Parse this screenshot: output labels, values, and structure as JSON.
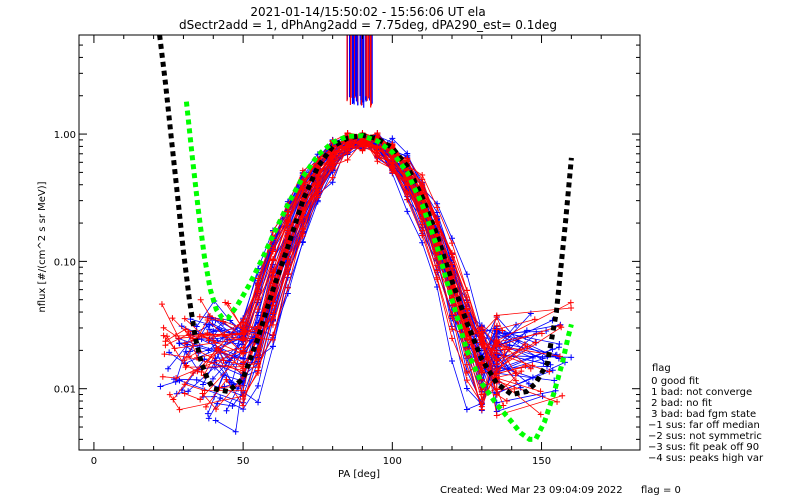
{
  "chart_data": {
    "type": "scatter",
    "title": "2021-01-14/15:50:02 - 15:56:06 UT ela",
    "subtitle": "dSectr2add = 1, dPhAng2add = 7.75deg, dPA290_est=   0.1deg",
    "xlabel": "PA [deg]",
    "ylabel": "nflux [#/(cm^2 s sr MeV)]",
    "xlim": [
      -5,
      183
    ],
    "ylim": [
      0.0033,
      6.0
    ],
    "y_scale": "log",
    "x_ticks": [
      {
        "value": 0,
        "label": "0"
      },
      {
        "value": 50,
        "label": "50"
      },
      {
        "value": 100,
        "label": "100"
      },
      {
        "value": 150,
        "label": "150"
      }
    ],
    "y_ticks": [
      {
        "value": 0.01,
        "label": "0.01"
      },
      {
        "value": 0.1,
        "label": "0.10"
      },
      {
        "value": 1.0,
        "label": "1.00"
      }
    ],
    "series": [
      {
        "color": "#000000",
        "style": "dashed",
        "x": [
          22,
          24,
          26,
          28,
          30,
          32,
          34,
          36,
          38,
          40,
          45,
          50,
          55,
          60,
          65,
          70,
          75,
          80,
          85,
          90,
          95,
          100,
          105,
          110,
          115,
          120,
          125,
          130,
          135,
          140,
          145,
          148,
          152,
          155,
          158,
          160
        ],
        "y": [
          6.0,
          2.5,
          0.9,
          0.33,
          0.12,
          0.05,
          0.025,
          0.016,
          0.012,
          0.01,
          0.0095,
          0.012,
          0.025,
          0.06,
          0.13,
          0.3,
          0.55,
          0.8,
          0.93,
          0.98,
          0.92,
          0.78,
          0.56,
          0.32,
          0.16,
          0.07,
          0.033,
          0.017,
          0.011,
          0.009,
          0.0095,
          0.011,
          0.016,
          0.04,
          0.2,
          0.65
        ]
      },
      {
        "color": "#00ff00",
        "style": "dashed",
        "x": [
          31,
          33,
          35,
          37,
          39,
          41,
          43,
          45,
          48,
          52,
          56,
          60,
          65,
          70,
          75,
          80,
          85,
          90,
          95,
          100,
          105,
          110,
          115,
          120,
          125,
          130,
          135,
          140,
          143,
          146,
          148,
          151,
          154,
          157,
          159,
          160
        ],
        "y": [
          1.8,
          0.65,
          0.25,
          0.11,
          0.06,
          0.042,
          0.036,
          0.036,
          0.045,
          0.065,
          0.1,
          0.16,
          0.28,
          0.46,
          0.68,
          0.86,
          0.96,
          0.97,
          0.88,
          0.72,
          0.5,
          0.28,
          0.13,
          0.05,
          0.02,
          0.011,
          0.0075,
          0.0055,
          0.0045,
          0.004,
          0.004,
          0.0055,
          0.009,
          0.016,
          0.026,
          0.032
        ]
      }
    ]
  },
  "flag_legend": {
    "title": "flag",
    "items": [
      " 0 good fit",
      " 1 bad: not converge",
      " 2 bad: no fit",
      " 3 bad: bad fgm state",
      "−1 sus: far off median",
      "−2 sus: not symmetric",
      "−3 sus: fit peak off 90",
      "−4 sus: peaks high var"
    ]
  },
  "footer": {
    "created": "Created: Wed Mar 23 09:04:09 2022",
    "flag": "flag = 0"
  },
  "colors": {
    "red": "#ff0000",
    "blue": "#0000ff",
    "black": "#000000",
    "green": "#00ff00"
  }
}
